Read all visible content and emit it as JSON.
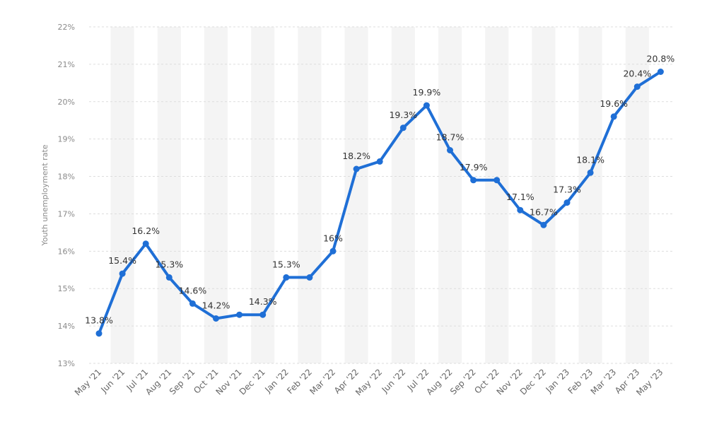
{
  "chart_data": {
    "type": "line",
    "ylabel": "Youth unemployment rate",
    "xlabel": "",
    "ylim": [
      13,
      22
    ],
    "y_tick_values": [
      13,
      14,
      15,
      16,
      17,
      18,
      19,
      20,
      21,
      22
    ],
    "y_tick_labels": [
      "13%",
      "14%",
      "15%",
      "16%",
      "17%",
      "18%",
      "19%",
      "20%",
      "21%",
      "22%"
    ],
    "grid": true,
    "line_color": "#1f6fd6",
    "categories": [
      "May '21",
      "Jun '21",
      "Jul '21",
      "Aug '21",
      "Sep '21",
      "Oct '21",
      "Nov '21",
      "Dec '21",
      "Jan '22",
      "Feb '22",
      "Mar '22",
      "Apr '22",
      "May '22",
      "Jun '22",
      "Jul '22",
      "Aug '22",
      "Sep '22",
      "Oct '22",
      "Nov '22",
      "Dec '22",
      "Jan '23",
      "Feb '23",
      "Mar '23",
      "Apr '23",
      "May '23"
    ],
    "values": [
      13.8,
      15.4,
      16.2,
      15.3,
      14.6,
      14.2,
      14.3,
      14.3,
      15.3,
      15.3,
      16,
      18.2,
      18.4,
      19.3,
      19.9,
      18.7,
      17.9,
      17.9,
      17.1,
      16.7,
      17.3,
      18.1,
      19.6,
      20.4,
      20.8
    ],
    "data_labels": [
      "13.8%",
      "15.4%",
      "16.2%",
      "15.3%",
      "14.6%",
      "14.2%",
      "",
      "14.3%",
      "15.3%",
      "",
      "16%",
      "18.2%",
      "",
      "19.3%",
      "19.9%",
      "18.7%",
      "17.9%",
      "",
      "17.1%",
      "16.7%",
      "17.3%",
      "18.1%",
      "19.6%",
      "20.4%",
      "20.8%"
    ]
  }
}
